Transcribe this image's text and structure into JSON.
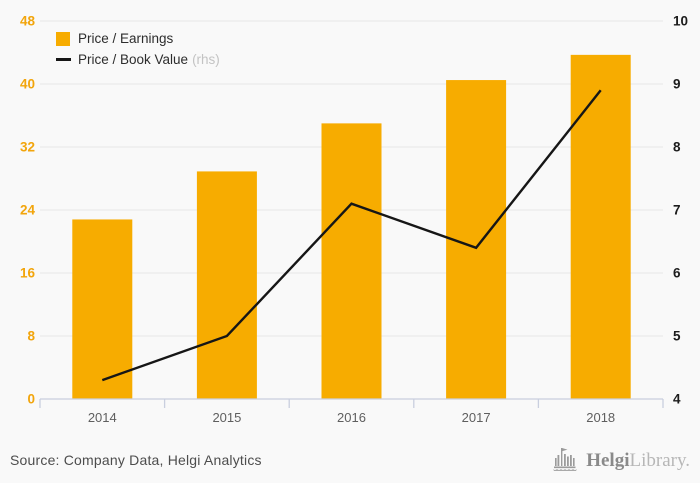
{
  "chart_data": {
    "type": "bar",
    "categories": [
      "2014",
      "2015",
      "2016",
      "2017",
      "2018"
    ],
    "series": [
      {
        "name": "Price / Earnings",
        "type": "bar",
        "axis": "left",
        "color": "#f7ac00",
        "values": [
          22.8,
          28.9,
          35.0,
          40.5,
          43.7
        ]
      },
      {
        "name": "Price / Book Value",
        "type": "line",
        "axis": "right",
        "color": "#161616",
        "values": [
          4.3,
          5.0,
          7.1,
          6.4,
          8.9
        ]
      }
    ],
    "title": "",
    "xlabel": "",
    "ylabel": "",
    "left_axis": {
      "min": 0,
      "max": 48,
      "step": 8,
      "tick_labels": [
        "0",
        "8",
        "16",
        "24",
        "32",
        "40",
        "48"
      ],
      "color": "#f2a50c"
    },
    "right_axis": {
      "min": 4,
      "max": 10,
      "step": 1,
      "tick_labels": [
        "4",
        "5",
        "6",
        "7",
        "8",
        "9",
        "10"
      ],
      "color": "#1c1c1c",
      "note": "rhs"
    },
    "grid": true,
    "gridline_color": "#e8e8e8",
    "axis_frame_color": "#c9cfdf",
    "x_label_color": "#5f5f5f",
    "legend_position": "top-left"
  },
  "legend": {
    "items": [
      {
        "label": "Price / Earnings",
        "swatch": "square"
      },
      {
        "label": "Price / Book Value",
        "suffix": "(rhs)",
        "swatch": "line"
      }
    ]
  },
  "footer": {
    "source": "Source: Company Data, Helgi Analytics",
    "brand": {
      "primary": "Helgi",
      "secondary": "Library."
    }
  }
}
